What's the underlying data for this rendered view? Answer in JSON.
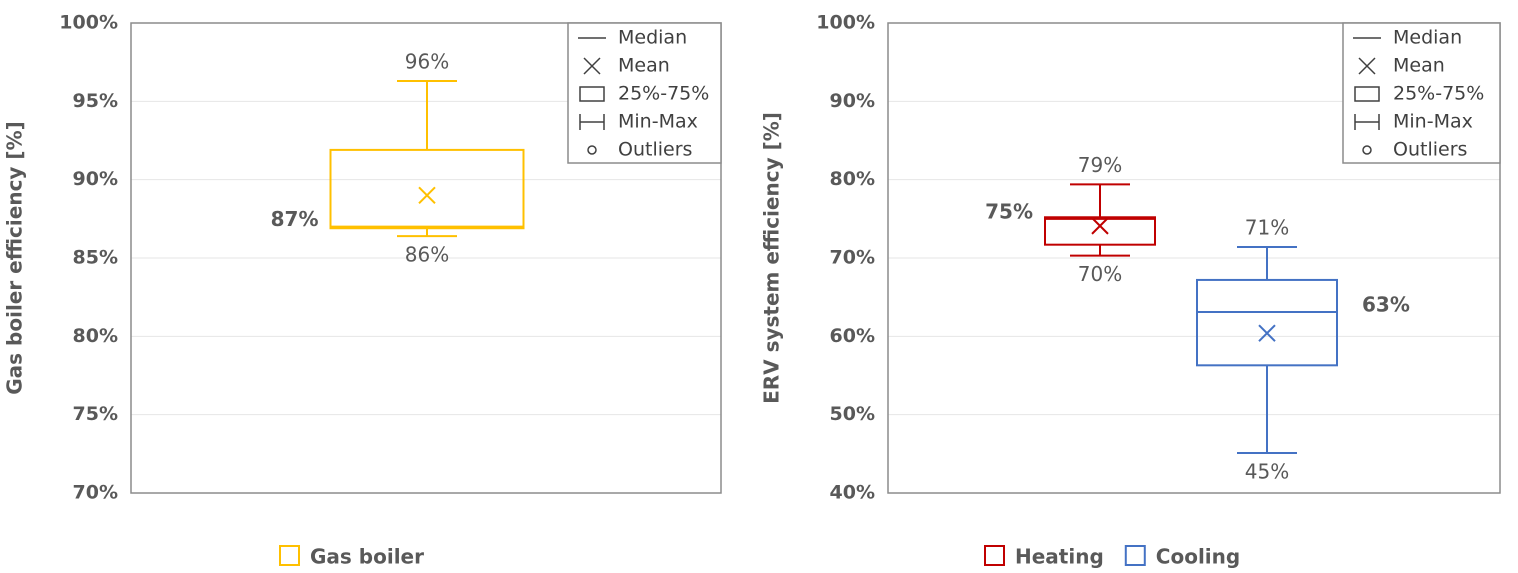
{
  "chart_data": [
    {
      "type": "box",
      "y_label": "Gas boiler efficiency [%]",
      "ylim": [
        70,
        100
      ],
      "yticks": [
        {
          "value": 70,
          "label": "70%"
        },
        {
          "value": 75,
          "label": "75%"
        },
        {
          "value": 80,
          "label": "80%"
        },
        {
          "value": 85,
          "label": "85%"
        },
        {
          "value": 90,
          "label": "90%"
        },
        {
          "value": 95,
          "label": "95%"
        },
        {
          "value": 100,
          "label": "100%"
        }
      ],
      "grid": true,
      "legend_items": [
        "Median",
        "Mean",
        "25%-75%",
        "Min-Max",
        "Outliers"
      ],
      "series": [
        {
          "name": "Gas boiler",
          "color": "#ffc000",
          "min": 86.4,
          "q1": 86.9,
          "median": 87.0,
          "q3": 91.9,
          "max": 96.3,
          "mean": 89.0,
          "value_labels": {
            "min": "86%",
            "median": "87%",
            "max": "96%"
          }
        }
      ]
    },
    {
      "type": "box",
      "y_label": "ERV system efficiency [%]",
      "ylim": [
        40,
        100
      ],
      "yticks": [
        {
          "value": 40,
          "label": "40%"
        },
        {
          "value": 50,
          "label": "50%"
        },
        {
          "value": 60,
          "label": "60%"
        },
        {
          "value": 70,
          "label": "70%"
        },
        {
          "value": 80,
          "label": "80%"
        },
        {
          "value": 90,
          "label": "90%"
        },
        {
          "value": 100,
          "label": "100%"
        }
      ],
      "grid": true,
      "legend_items": [
        "Median",
        "Mean",
        "25%-75%",
        "Min-Max",
        "Outliers"
      ],
      "series": [
        {
          "name": "Heating",
          "color": "#c00000",
          "min": 70.3,
          "q1": 71.7,
          "median": 75.0,
          "q3": 75.2,
          "max": 79.4,
          "mean": 74.1,
          "value_labels": {
            "min": "70%",
            "median": "75%",
            "max": "79%"
          }
        },
        {
          "name": "Cooling",
          "color": "#4472c4",
          "min": 45.1,
          "q1": 56.3,
          "median": 63.1,
          "q3": 67.2,
          "max": 71.4,
          "mean": 60.4,
          "value_labels": {
            "min": "45%",
            "median": "63%",
            "max": "71%"
          }
        }
      ]
    }
  ]
}
